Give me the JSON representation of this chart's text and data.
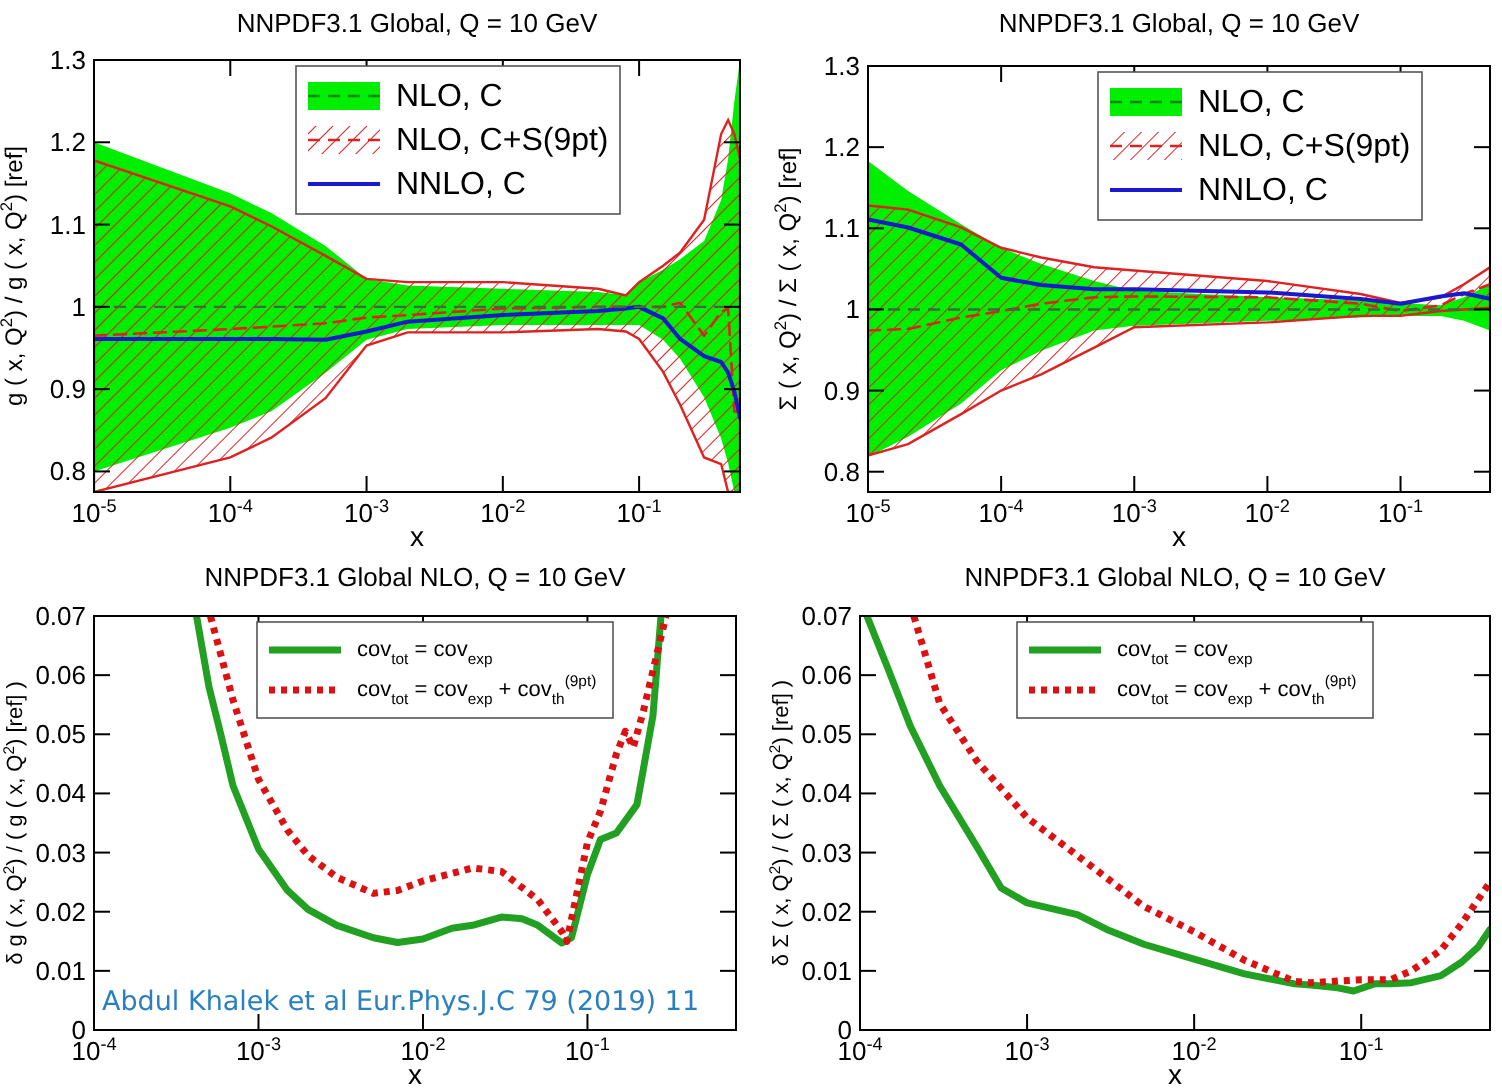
{
  "chart_data": [
    {
      "type": "line",
      "title": "NNPDF3.1 Global, Q = 10 GeV",
      "xlabel": "x",
      "ylabel": "g ( x, Q$^{2}$) / g ( x, Q$^{2}$) [ref]",
      "log": "x",
      "ref_lines": [
        {
          "axis": "y",
          "value": 1,
          "color": "#3d6b3d",
          "line_style": "dashed"
        }
      ],
      "legend": "top right",
      "xlim": [
        1e-05,
        0.55
      ],
      "ylim": [
        0.775,
        1.3
      ],
      "xticks": [
        {
          "value": 1e-05,
          "label": "10$^{-5}$"
        },
        {
          "value": 0.0001,
          "label": "10$^{-4}$"
        },
        {
          "value": 0.001,
          "label": "10$^{-3}$"
        },
        {
          "value": 0.01,
          "label": "10$^{-2}$"
        },
        {
          "value": 0.1,
          "label": "10$^{-1}$"
        }
      ],
      "yticks": [
        0.8,
        0.9,
        1,
        1.1,
        1.2,
        1.3
      ],
      "x": [
        1e-05,
        0.0001,
        0.0002,
        0.0005,
        0.001,
        0.002,
        0.01,
        0.05,
        0.08,
        0.1,
        0.15,
        0.2,
        0.3,
        0.4,
        0.45,
        0.5,
        0.55
      ],
      "series": [
        {
          "name": "NLO, C",
          "color": "#00ee00",
          "line_style": "dashed",
          "values": [
            null,
            null,
            null,
            null,
            null,
            null,
            null,
            null,
            null,
            null,
            null,
            null,
            null,
            null,
            null,
            null,
            null
          ],
          "lower": [
            0.8,
            0.853,
            0.873,
            0.92,
            0.96,
            0.973,
            0.978,
            0.978,
            0.978,
            0.978,
            0.96,
            0.937,
            0.89,
            0.84,
            0.81,
            0.775,
            0.775
          ],
          "upper": [
            1.2,
            1.138,
            1.114,
            1.074,
            1.034,
            1.026,
            1.022,
            1.018,
            1.014,
            1.03,
            1.045,
            1.058,
            1.08,
            1.13,
            1.18,
            1.25,
            1.3
          ]
        },
        {
          "name": "NLO, C+S(9pt)",
          "color": "#dd2222",
          "line_style": "dashed",
          "values": [
            0.965,
            0.973,
            0.976,
            0.98,
            0.987,
            0.99,
            0.998,
            1.0,
            1.0,
            1.0,
            1.0,
            1.005,
            0.965,
            0.994,
            0.998,
            0.873,
            0.873
          ],
          "lower": [
            0.775,
            0.817,
            0.841,
            0.889,
            0.953,
            0.969,
            0.969,
            0.973,
            0.97,
            0.961,
            0.921,
            0.881,
            0.817,
            0.809,
            0.775,
            0.775,
            0.775
          ],
          "upper": [
            1.178,
            1.122,
            1.098,
            1.062,
            1.034,
            1.03,
            1.03,
            1.022,
            1.014,
            1.03,
            1.05,
            1.066,
            1.106,
            1.21,
            1.227,
            1.21,
            1.18
          ]
        },
        {
          "name": "NNLO, C",
          "color": "#1a1acc",
          "line_style": "solid",
          "values": [
            0.961,
            0.961,
            0.961,
            0.96,
            0.97,
            0.982,
            0.99,
            0.995,
            0.998,
            1.0,
            0.986,
            0.961,
            0.94,
            0.933,
            0.92,
            0.897,
            0.865
          ]
        }
      ]
    },
    {
      "type": "line",
      "title": "NNPDF3.1 Global, Q = 10 GeV",
      "xlabel": "x",
      "ylabel": "Σ ( x, Q$^{2}$) / Σ ( x, Q$^{2}$) [ref]",
      "log": "x",
      "ref_lines": [
        {
          "axis": "y",
          "value": 1,
          "color": "#3d6b3d",
          "line_style": "dashed"
        }
      ],
      "legend": "top right",
      "xlim": [
        1e-05,
        0.47
      ],
      "ylim": [
        0.775,
        1.3
      ],
      "xticks": [
        {
          "value": 1e-05,
          "label": "10$^{-5}$"
        },
        {
          "value": 0.0001,
          "label": "10$^{-4}$"
        },
        {
          "value": 0.001,
          "label": "10$^{-3}$"
        },
        {
          "value": 0.01,
          "label": "10$^{-2}$"
        },
        {
          "value": 0.1,
          "label": "10$^{-1}$"
        }
      ],
      "yticks": [
        0.8,
        0.9,
        1,
        1.1,
        1.2,
        1.3
      ],
      "x": [
        1e-05,
        2e-05,
        5e-05,
        0.0001,
        0.0002,
        0.0005,
        0.001,
        0.01,
        0.05,
        0.1,
        0.2,
        0.3,
        0.47
      ],
      "series": [
        {
          "name": "NLO, C",
          "color": "#00ee00",
          "line_style": "dashed",
          "values": [
            null,
            null,
            null,
            null,
            null,
            null,
            null,
            null,
            null,
            null,
            null,
            null,
            null
          ],
          "lower": [
            0.818,
            0.843,
            0.884,
            0.925,
            0.949,
            0.974,
            0.98,
            0.986,
            0.99,
            0.992,
            0.992,
            0.986,
            0.974
          ],
          "upper": [
            1.183,
            1.146,
            1.105,
            1.076,
            1.056,
            1.035,
            1.023,
            1.015,
            1.011,
            1.008,
            1.005,
            1.015,
            1.031
          ]
        },
        {
          "name": "NLO, C+S(9pt)",
          "color": "#dd2222",
          "line_style": "dashed",
          "values": [
            0.974,
            0.976,
            0.99,
            0.998,
            1.007,
            1.015,
            1.016,
            1.015,
            1.007,
            0.998,
            1.005,
            1.019,
            1.031
          ],
          "lower": [
            0.82,
            0.834,
            0.871,
            0.9,
            0.92,
            0.953,
            0.978,
            0.984,
            0.992,
            0.992,
            0.998,
            1.0,
            1.002
          ],
          "upper": [
            1.128,
            1.123,
            1.101,
            1.076,
            1.064,
            1.052,
            1.048,
            1.035,
            1.019,
            1.008,
            1.015,
            1.031,
            1.052
          ]
        },
        {
          "name": "NNLO, C",
          "color": "#1a1acc",
          "line_style": "solid",
          "values": [
            1.111,
            1.101,
            1.08,
            1.039,
            1.03,
            1.025,
            1.025,
            1.021,
            1.013,
            1.007,
            1.016,
            1.02,
            1.013
          ]
        }
      ]
    },
    {
      "type": "line",
      "title": "NNPDF3.1 Global NLO, Q = 10 GeV",
      "xlabel": "x",
      "ylabel": "δ g ( x, Q$^{2}$) / ( g ( x, Q$^{2}$) [ref] )",
      "log": "x",
      "legend": "top",
      "xlim": [
        0.0001,
        0.8
      ],
      "ylim": [
        0,
        0.07
      ],
      "xticks": [
        {
          "value": 0.0001,
          "label": "10$^{-4}$"
        },
        {
          "value": 0.001,
          "label": "10$^{-3}$"
        },
        {
          "value": 0.01,
          "label": "10$^{-2}$"
        },
        {
          "value": 0.1,
          "label": "10$^{-1}$"
        }
      ],
      "yticks": [
        0,
        0.01,
        0.02,
        0.03,
        0.04,
        0.05,
        0.06,
        0.07
      ],
      "annotations": [
        "Abdul Khalek et al Eur.Phys.J.C 79 (2019) 11"
      ],
      "series": [
        {
          "name": "cov$_{tot}$ = cov$_{exp}$",
          "color": "#22a022",
          "line_style": "solid",
          "x": [
            0.00042,
            0.0005,
            0.00059,
            0.0007,
            0.001,
            0.0015,
            0.002,
            0.003,
            0.005,
            0.007,
            0.01,
            0.015,
            0.02,
            0.03,
            0.04,
            0.05,
            0.07,
            0.08,
            0.1,
            0.12,
            0.15,
            0.2,
            0.25,
            0.28
          ],
          "values": [
            0.07,
            0.058,
            0.05,
            0.0413,
            0.0306,
            0.0236,
            0.0204,
            0.0177,
            0.0156,
            0.0148,
            0.0154,
            0.0172,
            0.0177,
            0.0191,
            0.0188,
            0.0177,
            0.0147,
            0.0156,
            0.0263,
            0.0322,
            0.0333,
            0.0381,
            0.0531,
            0.07
          ]
        },
        {
          "name": "cov$_{tot}$ = cov$_{exp}$ + cov$_{th}$$^{(9pt)}$",
          "color": "#dd1111",
          "line_style": "dotted",
          "x": [
            0.00051,
            0.0007,
            0.001,
            0.0015,
            0.002,
            0.003,
            0.005,
            0.007,
            0.01,
            0.02,
            0.03,
            0.05,
            0.07,
            0.075,
            0.1,
            0.12,
            0.15,
            0.17,
            0.19,
            0.22,
            0.25,
            0.3
          ],
          "values": [
            0.07,
            0.0558,
            0.0424,
            0.0338,
            0.0295,
            0.0258,
            0.0231,
            0.0236,
            0.0252,
            0.0274,
            0.0268,
            0.022,
            0.0166,
            0.015,
            0.0317,
            0.037,
            0.0467,
            0.0505,
            0.0478,
            0.0542,
            0.0607,
            0.07
          ]
        }
      ]
    },
    {
      "type": "line",
      "title": "NNPDF3.1 Global NLO, Q = 10 GeV",
      "xlabel": "x",
      "ylabel": "δ Σ ( x, Q$^{2}$) / ( Σ ( x, Q$^{2}$) [ref] )",
      "log": "x",
      "legend": "top",
      "xlim": [
        0.0001,
        0.59
      ],
      "ylim": [
        0,
        0.07
      ],
      "xticks": [
        {
          "value": 0.0001,
          "label": "10$^{-4}$"
        },
        {
          "value": 0.001,
          "label": "10$^{-3}$"
        },
        {
          "value": 0.01,
          "label": "10$^{-2}$"
        },
        {
          "value": 0.1,
          "label": "10$^{-1}$"
        }
      ],
      "yticks": [
        0,
        0.01,
        0.02,
        0.03,
        0.04,
        0.05,
        0.06,
        0.07
      ],
      "series": [
        {
          "name": "cov$_{tot}$ = cov$_{exp}$",
          "color": "#22a022",
          "line_style": "solid",
          "x": [
            0.00011,
            0.00015,
            0.0002,
            0.0003,
            0.0005,
            0.0007,
            0.001,
            0.002,
            0.003,
            0.005,
            0.01,
            0.02,
            0.04,
            0.05,
            0.07,
            0.09,
            0.12,
            0.15,
            0.2,
            0.3,
            0.4,
            0.5,
            0.59
          ],
          "values": [
            0.07,
            0.0605,
            0.0514,
            0.0413,
            0.031,
            0.024,
            0.0215,
            0.0195,
            0.017,
            0.0145,
            0.012,
            0.0095,
            0.0078,
            0.0076,
            0.0072,
            0.0066,
            0.0078,
            0.0078,
            0.008,
            0.0092,
            0.0115,
            0.014,
            0.017
          ]
        },
        {
          "name": "cov$_{tot}$ = cov$_{exp}$ + cov$_{th}$$^{(9pt)}$",
          "color": "#dd1111",
          "line_style": "dotted",
          "x": [
            0.00021,
            0.0003,
            0.0005,
            0.001,
            0.002,
            0.003,
            0.005,
            0.01,
            0.02,
            0.04,
            0.05,
            0.1,
            0.15,
            0.2,
            0.3,
            0.4,
            0.59
          ],
          "values": [
            0.07,
            0.0552,
            0.0455,
            0.0359,
            0.0295,
            0.0257,
            0.0209,
            0.0166,
            0.0118,
            0.0082,
            0.008,
            0.0085,
            0.0085,
            0.01,
            0.0135,
            0.018,
            0.025
          ]
        }
      ]
    }
  ]
}
